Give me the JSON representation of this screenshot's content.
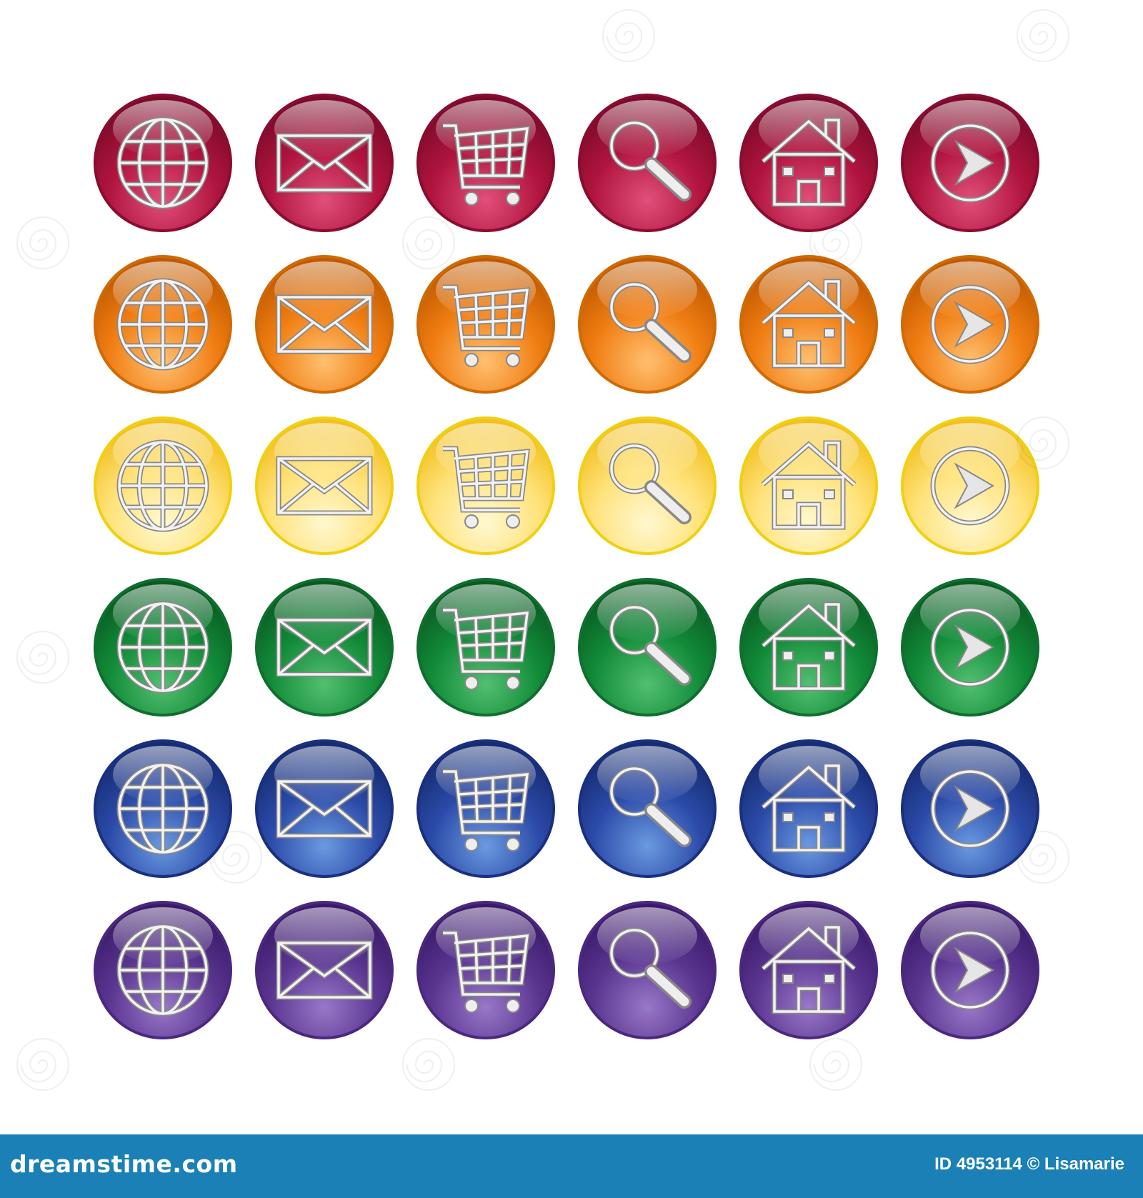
{
  "grid": {
    "rows": [
      {
        "name": "red",
        "base": "#b0143e",
        "light": "#e0507a",
        "dark": "#7a0a28",
        "rim": "#8a0c30"
      },
      {
        "name": "orange",
        "base": "#f07d12",
        "light": "#ffc070",
        "dark": "#c05a00",
        "rim": "#d06a05"
      },
      {
        "name": "yellow",
        "base": "#ffe27a",
        "light": "#fff8d0",
        "dark": "#f2c020",
        "rim": "#f0d010"
      },
      {
        "name": "green",
        "base": "#118a38",
        "light": "#52c070",
        "dark": "#0a5a22",
        "rim": "#0e6f2e"
      },
      {
        "name": "blue",
        "base": "#2b4aa8",
        "light": "#6a9ae0",
        "dark": "#162c70",
        "rim": "#1a2f80"
      },
      {
        "name": "purple",
        "base": "#5a3590",
        "light": "#9878c8",
        "dark": "#3a1a68",
        "rim": "#4a2880"
      }
    ],
    "icons": [
      "globe-icon",
      "envelope-icon",
      "cart-icon",
      "magnifier-icon",
      "house-icon",
      "arrow-icon"
    ]
  },
  "footer": {
    "brand": "dreamstime.com",
    "credit": "ID 4953114 © Lisamarie",
    "background": "#1b80b6"
  }
}
